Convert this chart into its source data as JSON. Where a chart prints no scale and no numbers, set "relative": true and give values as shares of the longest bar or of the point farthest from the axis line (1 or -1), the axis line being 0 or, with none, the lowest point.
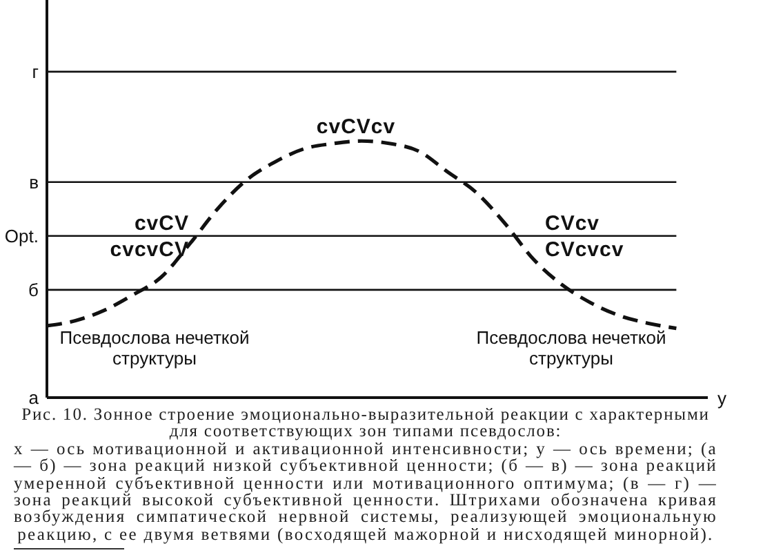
{
  "chart_data": {
    "type": "line",
    "relative": true,
    "title": "Рис. 10. Зонное строение эмоционально-выразительной реакции с характерными для соответствующих зон типами псевдослов:",
    "xlabel": "у",
    "categories": [
      null,
      null,
      null,
      null,
      null,
      null,
      null,
      null,
      null,
      null,
      null,
      null,
      null,
      null,
      null,
      null,
      null,
      null,
      null,
      null,
      null,
      null,
      null
    ],
    "values": [
      0.28,
      0.3,
      0.34,
      0.4,
      0.47,
      0.6,
      0.74,
      0.85,
      0.92,
      0.97,
      0.99,
      1.0,
      0.99,
      0.96,
      0.88,
      0.8,
      0.68,
      0.54,
      0.44,
      0.37,
      0.32,
      0.29,
      0.27
    ],
    "color": "#111111",
    "line_style": "dashed",
    "ref_lines": [
      {
        "axis": "y",
        "value": 0,
        "label": "а",
        "color": "#111111"
      },
      {
        "axis": "y",
        "value": 0.42,
        "label": "б",
        "color": "#111111"
      },
      {
        "axis": "y",
        "value": 0.63,
        "label": "Opt.",
        "color": "#111111"
      },
      {
        "axis": "y",
        "value": 0.84,
        "label": "в",
        "color": "#111111"
      },
      {
        "axis": "y",
        "value": 1.27,
        "label": "г",
        "color": "#111111"
      }
    ],
    "annotations": [
      "cvCVcv",
      "cvCV",
      "cvcvCV",
      "CVcv",
      "CVcvcv",
      "Псевдослова нечеткой структуры",
      "Псевдослова нечеткой структуры",
      "х — ось мотивационной и активационной интенсивности; у — ось времени; (а — б) — зона реакций низкой субъективной ценности; (б — в) — зона реакций умеренной субъективной ценности или мотивационного оптимума; (в — г) — зона реакций высокой субъективной ценности. Штрихами обозначена кривая возбуждения симпатической нервной системы, реализующей эмоциональную реакцию, с ее двумя ветвями (восходящей мажорной и нисходящей минорной)."
    ]
  }
}
